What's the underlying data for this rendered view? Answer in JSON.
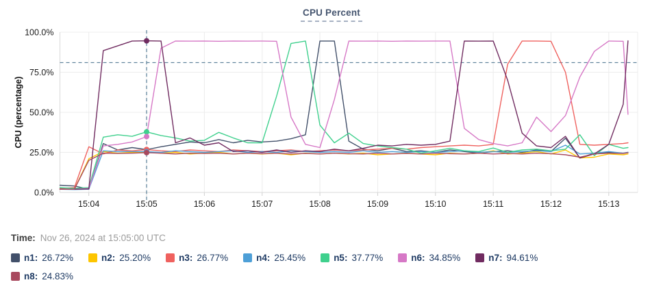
{
  "title": "CPU Percent",
  "time_label": "Time:",
  "time_value": "Nov 26, 2024 at 15:05:00 UTC",
  "chart_data": {
    "type": "line",
    "title": "CPU Percent",
    "xlabel": "",
    "ylabel": "CPU (percentage)",
    "ylim": [
      0,
      100
    ],
    "grid": true,
    "legend_position": "bottom",
    "y_ticks": [
      "0.0%",
      "25.0%",
      "50.0%",
      "75.0%",
      "100.0%"
    ],
    "y_tick_values": [
      0,
      25,
      50,
      75,
      100
    ],
    "x_ticks": [
      "15:04",
      "15:05",
      "15:06",
      "15:07",
      "15:08",
      "15:09",
      "15:10",
      "15:11",
      "15:12",
      "15:13"
    ],
    "x_tick_seconds": [
      30,
      90,
      150,
      210,
      270,
      330,
      390,
      450,
      510,
      570
    ],
    "x_domain_seconds": [
      0,
      600
    ],
    "x_start_time": "15:03:30",
    "threshold_percent": 81,
    "threshold_color": "#567d96",
    "crosshair_seconds": 90,
    "crosshair_time": "15:05:00",
    "crosshair_color": "#567d96",
    "x_seconds": [
      0,
      15,
      30,
      45,
      60,
      75,
      90,
      105,
      120,
      135,
      150,
      165,
      180,
      195,
      210,
      225,
      240,
      255,
      270,
      285,
      300,
      315,
      330,
      345,
      360,
      375,
      390,
      405,
      420,
      435,
      450,
      465,
      480,
      495,
      510,
      525,
      540,
      555,
      570,
      585,
      590
    ],
    "series": [
      {
        "name": "n1",
        "color": "#42506a",
        "legend_value": "26.72%",
        "values": [
          4.5,
          4,
          2,
          30.5,
          26.5,
          28,
          26.72,
          28.5,
          30,
          31.5,
          31,
          33,
          31,
          32.5,
          31.5,
          32,
          33.5,
          36,
          94.5,
          94.5,
          32,
          27,
          26,
          27.5,
          25.5,
          26,
          25,
          26.5,
          25.5,
          24.5,
          25.5,
          26,
          25,
          26.5,
          25.5,
          33.8,
          21.5,
          24.5,
          25,
          24.5,
          25
        ]
      },
      {
        "name": "n2",
        "color": "#fdc500",
        "legend_value": "25.20%",
        "values": [
          2,
          2,
          21,
          25.5,
          24.5,
          25,
          25.2,
          24.5,
          25,
          24,
          24.5,
          25,
          24,
          24.5,
          24,
          24.5,
          23.5,
          24.5,
          24,
          24.5,
          24,
          24.5,
          23.5,
          24,
          24.5,
          24,
          23.5,
          24.5,
          24,
          24.5,
          26,
          24,
          24.5,
          25.5,
          24,
          26.5,
          21.5,
          22,
          24,
          23.5,
          24
        ]
      },
      {
        "name": "n3",
        "color": "#ef615e",
        "legend_value": "26.77%",
        "values": [
          2.5,
          3,
          28.5,
          24,
          26.5,
          26,
          26.77,
          26,
          25.5,
          26.5,
          26,
          25.5,
          26.5,
          26,
          25.5,
          26,
          26.5,
          25.5,
          26,
          26.5,
          26,
          26.5,
          27,
          27.5,
          27,
          28,
          28.5,
          29,
          29.5,
          29,
          30,
          80,
          94.5,
          94.5,
          94.3,
          75,
          30,
          29.5,
          30,
          30.5,
          31
        ]
      },
      {
        "name": "n4",
        "color": "#4d9fd7",
        "legend_value": "25.45%",
        "values": [
          2,
          1.8,
          2,
          26,
          25.5,
          25.5,
          25.45,
          25,
          26,
          25.5,
          25,
          25.5,
          26,
          25,
          25.5,
          25,
          26,
          25.5,
          25,
          25.5,
          25,
          26,
          25,
          25.5,
          25,
          25.5,
          25,
          25.5,
          26,
          25,
          25.5,
          25,
          25.5,
          26,
          25.5,
          29.5,
          24,
          24.5,
          25.5,
          24.5,
          25
        ]
      },
      {
        "name": "n5",
        "color": "#3fd08d",
        "legend_value": "37.77%",
        "values": [
          3,
          2.5,
          3,
          34.5,
          36,
          35,
          37.77,
          35.5,
          34,
          32,
          32.5,
          37.5,
          34,
          31,
          31,
          60,
          93,
          94.5,
          42,
          31,
          37,
          30.5,
          29,
          28,
          27,
          24.5,
          26,
          27.5,
          26,
          25.5,
          27.7,
          25,
          26.5,
          27,
          26,
          27,
          36,
          23,
          30,
          27.5,
          28
        ]
      },
      {
        "name": "n6",
        "color": "#d678c6",
        "legend_value": "34.85%",
        "values": [
          2,
          2,
          2.5,
          29,
          30,
          31.5,
          34.85,
          90,
          94.5,
          94.4,
          94.5,
          94.3,
          94.5,
          94.4,
          94.5,
          94.3,
          47,
          30,
          28,
          58,
          94.5,
          94.4,
          94.5,
          94.3,
          94.5,
          94.4,
          94.5,
          94.5,
          40,
          33,
          30.5,
          29,
          31,
          47,
          38,
          48,
          72,
          88,
          94.5,
          94.3,
          48.7
        ]
      },
      {
        "name": "n7",
        "color": "#702b60",
        "legend_value": "94.61%",
        "values": [
          2,
          2,
          2.2,
          88.5,
          91.5,
          94.5,
          94.61,
          94.5,
          31,
          34,
          29.5,
          31,
          25.5,
          26,
          25,
          26.5,
          25,
          26,
          25.5,
          27,
          26,
          27.5,
          29.5,
          29,
          30,
          29.5,
          30,
          32,
          94.5,
          94.4,
          94.5,
          70,
          37,
          29,
          28,
          35,
          21.5,
          24,
          30,
          55,
          94.6
        ]
      },
      {
        "name": "n8",
        "color": "#a8495e",
        "legend_value": "24.83%",
        "values": [
          2.2,
          2,
          20,
          24.5,
          24.3,
          24.5,
          24.83,
          24.5,
          24,
          24.5,
          24.3,
          24.5,
          24,
          24.5,
          24.2,
          24.5,
          24,
          24.3,
          24,
          24.5,
          24.2,
          24,
          24.5,
          24,
          24.3,
          24,
          24.5,
          24.2,
          24,
          24.5,
          24,
          24.3,
          24,
          24.5,
          24.2,
          23.5,
          22,
          24,
          24.5,
          24.3,
          24.8
        ]
      }
    ],
    "colors": {
      "grid": "#ececec",
      "axis": "#d9d9d9",
      "tick_text": "#1a1a1a",
      "title_text": "#44546e",
      "legend_text": "#1e3a63"
    }
  }
}
